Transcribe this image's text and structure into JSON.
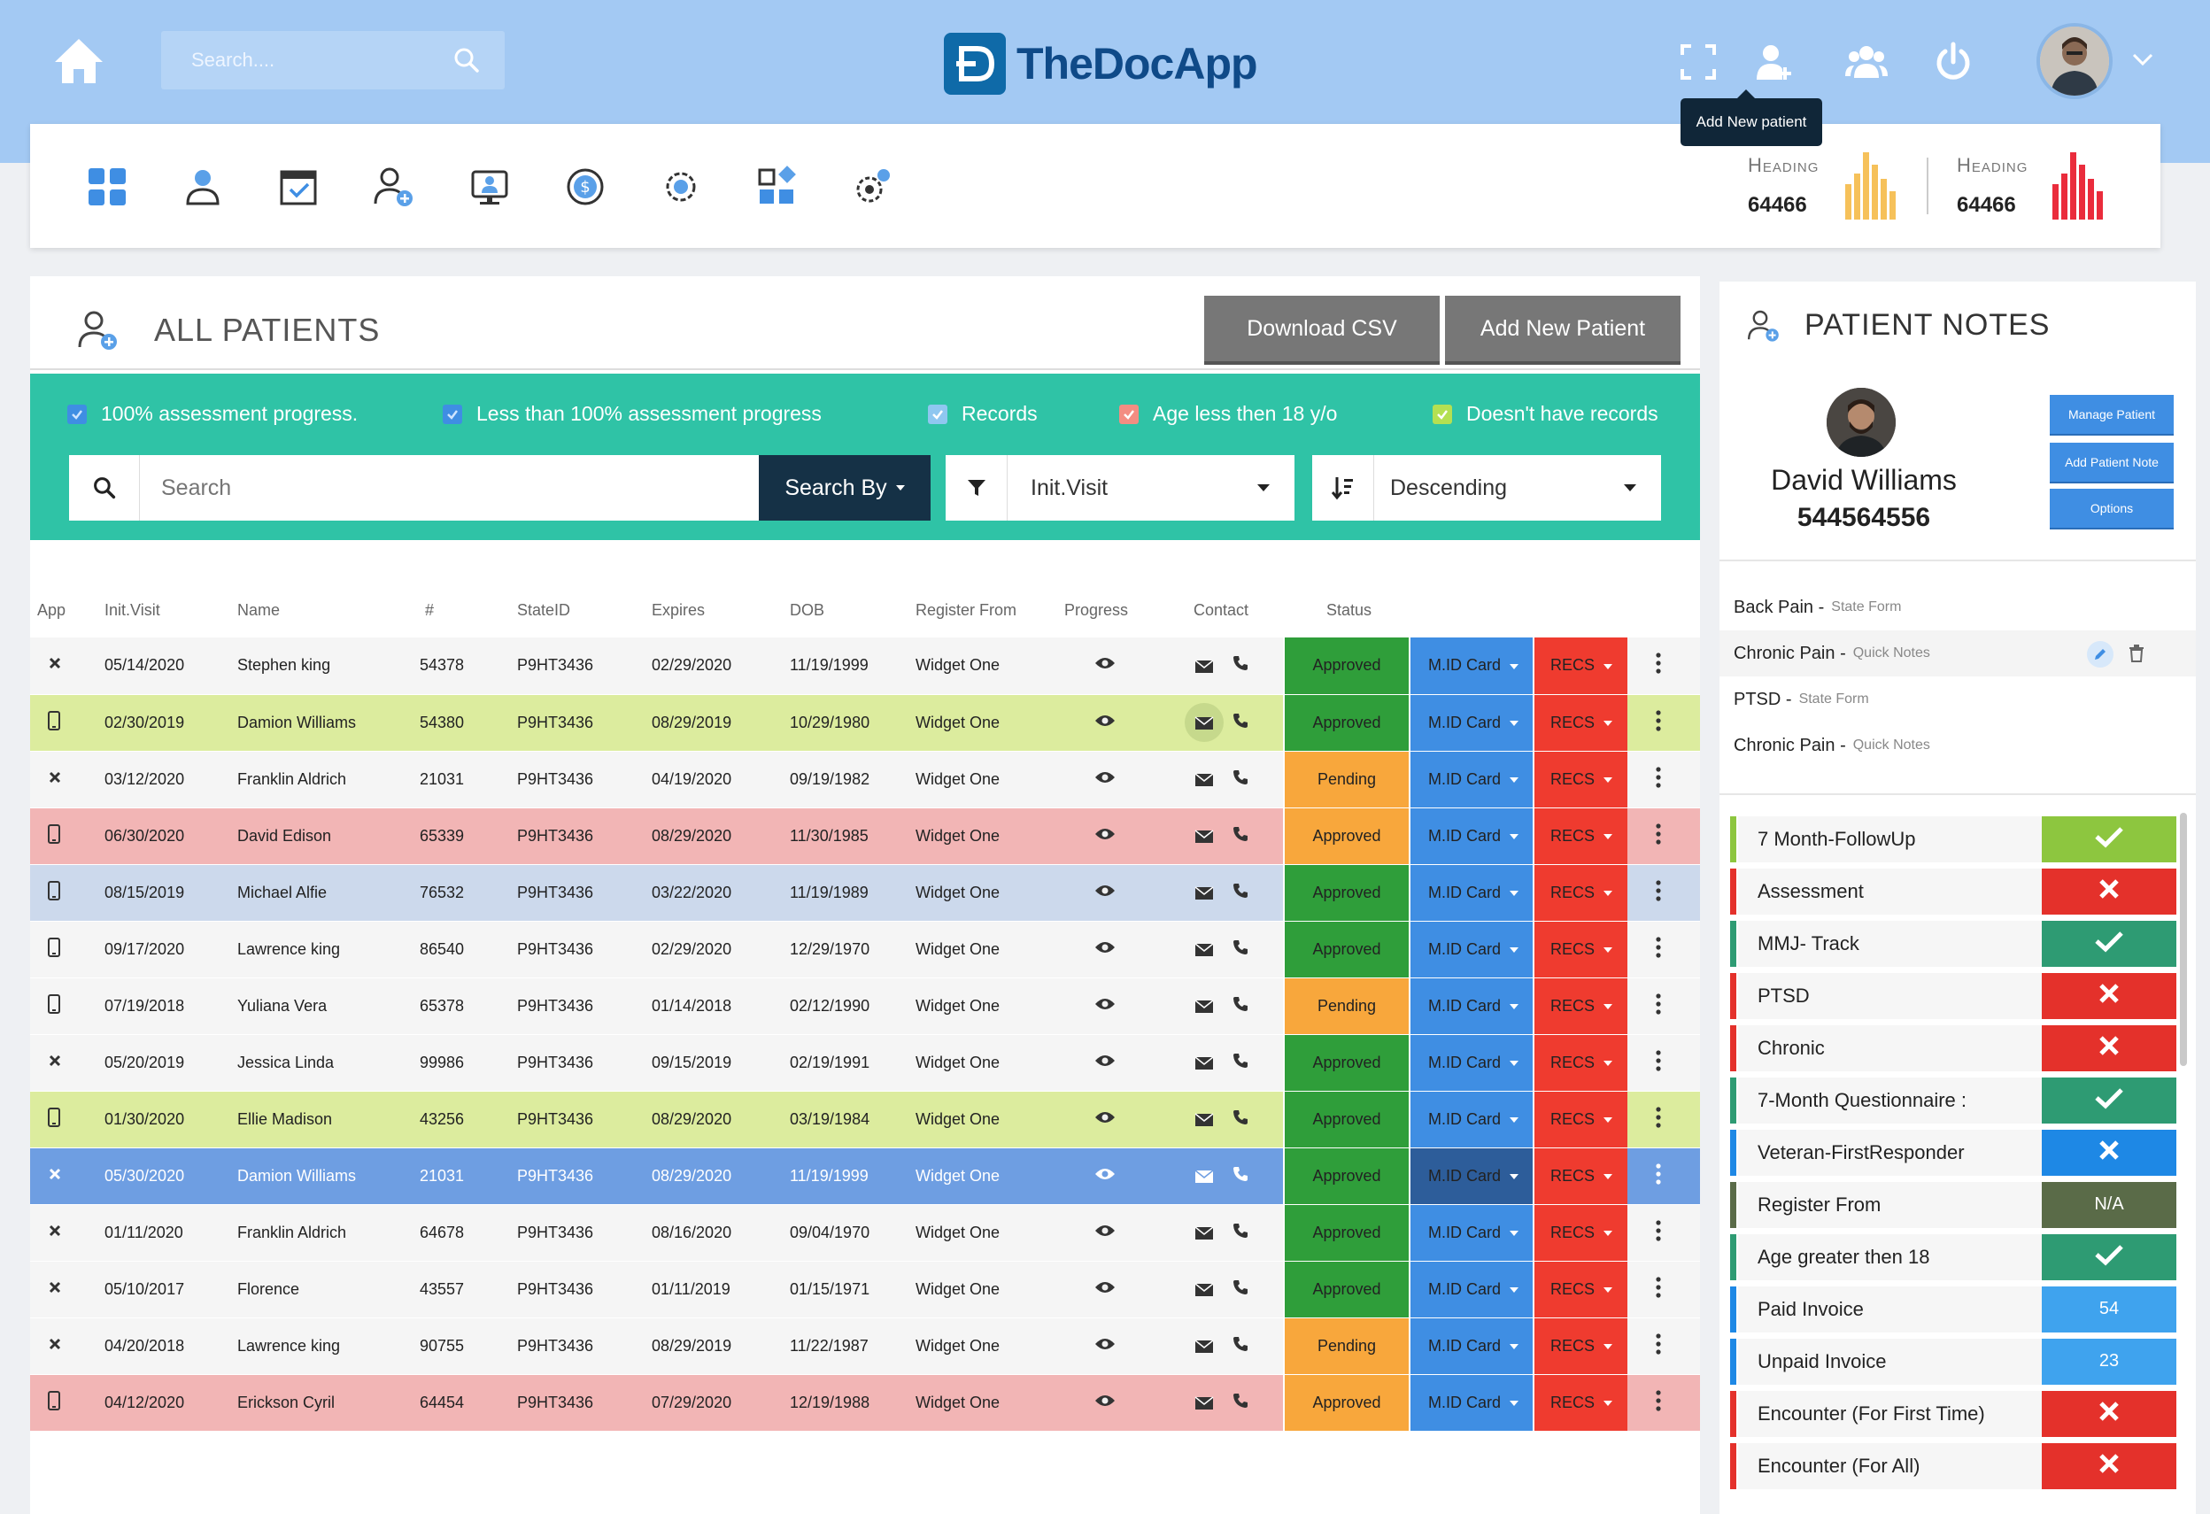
{
  "header": {
    "search_placeholder": "Search....",
    "app_name": "TheDocApp",
    "tooltip": "Add New patient"
  },
  "stats": [
    {
      "heading": "Heading",
      "value": "64466",
      "color": "#f6c15a"
    },
    {
      "heading": "Heading",
      "value": "64466",
      "color": "#ea2c3c"
    }
  ],
  "patients_panel": {
    "title": "ALL PATIENTS",
    "download_label": "Download CSV",
    "add_label": "Add New Patient",
    "filters": [
      {
        "label": "100% assessment progress.",
        "color": "#3f8ee3"
      },
      {
        "label": "Less than 100% assessment progress",
        "color": "#3f8ee3"
      },
      {
        "label": "Records",
        "color": "#8fc7f0"
      },
      {
        "label": "Age less then 18 y/o",
        "color": "#f38d82"
      },
      {
        "label": "Doesn't have records",
        "color": "#b4e052"
      }
    ],
    "search_placeholder": "Search",
    "search_by_label": "Search By",
    "sort_field": "Init.Visit",
    "sort_order": "Descending",
    "columns": [
      "App",
      "Init.Visit",
      "Name",
      "#",
      "StateID",
      "Expires",
      "DOB",
      "Register From",
      "Progress",
      "Contact",
      "Status"
    ],
    "mid_label": "M.ID Card",
    "recs_label": "RECS",
    "rows": [
      {
        "app": "x",
        "init": "05/14/2020",
        "name": "Stephen king",
        "num": "54378",
        "state": "P9HT3436",
        "expires": "02/29/2020",
        "dob": "11/19/1999",
        "reg": "Widget One",
        "status": "Approved",
        "status_color": "#2f9e3a",
        "bg": "#f5f5f5"
      },
      {
        "app": "phone",
        "init": "02/30/2019",
        "name": "Damion Williams",
        "num": "54380",
        "state": "P9HT3436",
        "expires": "08/29/2019",
        "dob": "10/29/1980",
        "reg": "Widget One",
        "status": "Approved",
        "status_color": "#2f9e3a",
        "bg": "#dcec9e"
      },
      {
        "app": "x",
        "init": "03/12/2020",
        "name": "Franklin Aldrich",
        "num": "21031",
        "state": "P9HT3436",
        "expires": "04/19/2020",
        "dob": "09/19/1982",
        "reg": "Widget One",
        "status": "Pending",
        "status_color": "#f8a73c",
        "bg": "#f5f5f5"
      },
      {
        "app": "phone",
        "init": "06/30/2020",
        "name": "David Edison",
        "num": "65339",
        "state": "P9HT3436",
        "expires": "08/29/2020",
        "dob": "11/30/1985",
        "reg": "Widget One",
        "status": "Approved",
        "status_color": "#f8a73c",
        "bg": "#f2b5b5"
      },
      {
        "app": "phone",
        "init": "08/15/2019",
        "name": "Michael Alfie",
        "num": "76532",
        "state": "P9HT3436",
        "expires": "03/22/2020",
        "dob": "11/19/1989",
        "reg": "Widget One",
        "status": "Approved",
        "status_color": "#2f9e3a",
        "bg": "#ccd9ec"
      },
      {
        "app": "phone",
        "init": "09/17/2020",
        "name": "Lawrence king",
        "num": "86540",
        "state": "P9HT3436",
        "expires": "02/29/2020",
        "dob": "12/29/1970",
        "reg": "Widget One",
        "status": "Approved",
        "status_color": "#2f9e3a",
        "bg": "#f5f5f5"
      },
      {
        "app": "phone",
        "init": "07/19/2018",
        "name": "Yuliana Vera",
        "num": "65378",
        "state": "P9HT3436",
        "expires": "01/14/2018",
        "dob": "02/12/1990",
        "reg": "Widget One",
        "status": "Pending",
        "status_color": "#f8a73c",
        "bg": "#f5f5f5"
      },
      {
        "app": "x",
        "init": "05/20/2019",
        "name": "Jessica Linda",
        "num": "99986",
        "state": "P9HT3436",
        "expires": "09/15/2019",
        "dob": "02/19/1991",
        "reg": "Widget One",
        "status": "Approved",
        "status_color": "#2f9e3a",
        "bg": "#f5f5f5"
      },
      {
        "app": "phone",
        "init": "01/30/2020",
        "name": "Ellie Madison",
        "num": "43256",
        "state": "P9HT3436",
        "expires": "08/29/2020",
        "dob": "03/19/1984",
        "reg": "Widget One",
        "status": "Approved",
        "status_color": "#2f9e3a",
        "bg": "#dcec9e"
      },
      {
        "app": "x",
        "init": "05/30/2020",
        "name": "Damion Williams",
        "num": "21031",
        "state": "P9HT3436",
        "expires": "08/29/2020",
        "dob": "11/19/1999",
        "reg": "Widget One",
        "status": "Approved",
        "status_color": "#2f9e3a",
        "bg": "#6e9ee2",
        "selected": true
      },
      {
        "app": "x",
        "init": "01/11/2020",
        "name": "Franklin Aldrich",
        "num": "64678",
        "state": "P9HT3436",
        "expires": "08/16/2020",
        "dob": "09/04/1970",
        "reg": "Widget One",
        "status": "Approved",
        "status_color": "#2f9e3a",
        "bg": "#f5f5f5"
      },
      {
        "app": "x",
        "init": "05/10/2017",
        "name": "Florence",
        "num": "43557",
        "state": "P9HT3436",
        "expires": "01/11/2019",
        "dob": "01/15/1971",
        "reg": "Widget One",
        "status": "Approved",
        "status_color": "#2f9e3a",
        "bg": "#f5f5f5"
      },
      {
        "app": "x",
        "init": "04/20/2018",
        "name": "Lawrence king",
        "num": "90755",
        "state": "P9HT3436",
        "expires": "08/29/2019",
        "dob": "11/22/1987",
        "reg": "Widget One",
        "status": "Pending",
        "status_color": "#f8a73c",
        "bg": "#f5f5f5"
      },
      {
        "app": "phone",
        "init": "04/12/2020",
        "name": "Erickson Cyril",
        "num": "64454",
        "state": "P9HT3436",
        "expires": "07/29/2020",
        "dob": "12/19/1988",
        "reg": "Widget One",
        "status": "Approved",
        "status_color": "#f8a73c",
        "bg": "#f2b5b5"
      }
    ]
  },
  "notes_panel": {
    "title": "PATIENT NOTES",
    "patient_name": "David Williams",
    "patient_id": "544564556",
    "buttons": [
      "Manage Patient",
      "Add Patient Note",
      "Options"
    ],
    "notes": [
      {
        "title": "Back Pain",
        "type": "State Form"
      },
      {
        "title": "Chronic Pain",
        "type": "Quick Notes"
      },
      {
        "title": "PTSD",
        "type": "State Form"
      },
      {
        "title": "Chronic Pain",
        "type": "Quick Notes"
      }
    ],
    "checklist": [
      {
        "label": "7 Month-FollowUp",
        "kind": "check",
        "text": "",
        "bar": "#8dc63f",
        "color": "#8dc63f"
      },
      {
        "label": "Assessment",
        "kind": "x",
        "text": "",
        "bar": "#e4312b",
        "color": "#e4312b"
      },
      {
        "label": "MMJ- Track",
        "kind": "check",
        "text": "",
        "bar": "#2e9b73",
        "color": "#2e9b73"
      },
      {
        "label": "PTSD",
        "kind": "x",
        "text": "",
        "bar": "#e4312b",
        "color": "#e4312b"
      },
      {
        "label": "Chronic",
        "kind": "x",
        "text": "",
        "bar": "#e4312b",
        "color": "#e4312b"
      },
      {
        "label": "7-Month Questionnaire :",
        "kind": "check",
        "text": "",
        "bar": "#2e9b73",
        "color": "#2e9b73"
      },
      {
        "label": "Veteran-FirstResponder",
        "kind": "x",
        "text": "",
        "bar": "#1e88e5",
        "color": "#1e88e5"
      },
      {
        "label": "Register From",
        "kind": "text",
        "text": "N/A",
        "bar": "#5a6b48",
        "color": "#5a6b48"
      },
      {
        "label": "Age greater then 18",
        "kind": "check",
        "text": "",
        "bar": "#2e9b73",
        "color": "#2e9b73"
      },
      {
        "label": "Paid Invoice",
        "kind": "text",
        "text": "54",
        "bar": "#1e88e5",
        "color": "#3fa3ee"
      },
      {
        "label": "Unpaid Invoice",
        "kind": "text",
        "text": "23",
        "bar": "#1e88e5",
        "color": "#3fa3ee"
      },
      {
        "label": "Encounter (For First Time)",
        "kind": "x",
        "text": "",
        "bar": "#e4312b",
        "color": "#e4312b"
      },
      {
        "label": "Encounter (For All)",
        "kind": "x",
        "text": "",
        "bar": "#e4312b",
        "color": "#e4312b"
      }
    ]
  }
}
